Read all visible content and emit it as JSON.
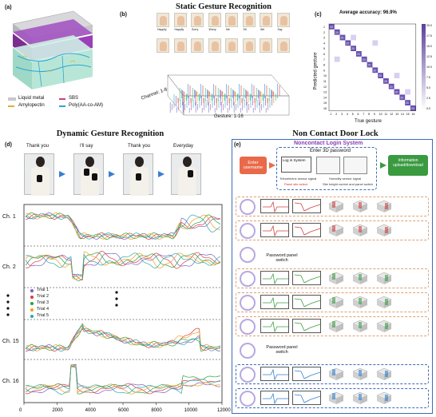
{
  "panel_a": {
    "letter": "(a)",
    "legend": {
      "liquid_metal": "Liquid metal",
      "sbs": "SBS",
      "amylopectin": "Amylopectin",
      "poly": "Poly(AA-co-AM)"
    }
  },
  "panel_b": {
    "letter": "(b)",
    "title": "Static Gesture Recognition",
    "channel_label": "Channel: 1-8",
    "gesture_label": "Gesture: 1-16",
    "gesture_names": [
      "Happily",
      "Happily",
      "Sorry",
      "Worry",
      "Me",
      "Sit",
      "We",
      "Say"
    ]
  },
  "panel_c": {
    "letter": "(c)",
    "title": "Average accuracy: 96.9%",
    "xlabel": "True gesture",
    "ylabel": "Predicted gesture",
    "ticks": [
      "1",
      "2",
      "3",
      "4",
      "5",
      "6",
      "7",
      "8",
      "9",
      "10",
      "11",
      "12",
      "13",
      "14",
      "15",
      "16"
    ],
    "colorbar": [
      "20.0",
      "17.5",
      "15.0",
      "12.5",
      "10.0",
      "7.5",
      "5.0",
      "2.5",
      "0.0"
    ]
  },
  "panel_d": {
    "letter": "(d)",
    "title": "Dynamic Gesture Recognition",
    "photos": [
      "Thank you",
      "I'll say",
      "Thank you",
      "Everyday"
    ],
    "channels": [
      "Ch. 1",
      "Ch. 2",
      "Ch. 15",
      "Ch. 16"
    ],
    "trials": [
      "Trial 1",
      "Trial 2",
      "Trial 3",
      "Trial 4",
      "Trial 5"
    ],
    "trial_colors": [
      "#7a5fc0",
      "#e03a3a",
      "#2f9e3a",
      "#f0a020",
      "#2aa8a8"
    ],
    "xticks": [
      "0",
      "2000",
      "4000",
      "6000",
      "8000",
      "10000",
      "12000"
    ]
  },
  "panel_e": {
    "letter": "(e)",
    "title": "Non Contact Door Lock",
    "system_title": "Noncontact Login System",
    "enter_username": "Enter username",
    "enter_password": "Enter 3D password",
    "login_system": "Log in System",
    "triboelectric": "Triboelectric sensor signal",
    "panel_site": "Panel site select",
    "humidity": "Humidity sensor signal",
    "site_height": "Site height control and panel switch",
    "info": "Information upload/download",
    "switch_labels": [
      "Password panel switch",
      "Password panel switch"
    ]
  }
}
